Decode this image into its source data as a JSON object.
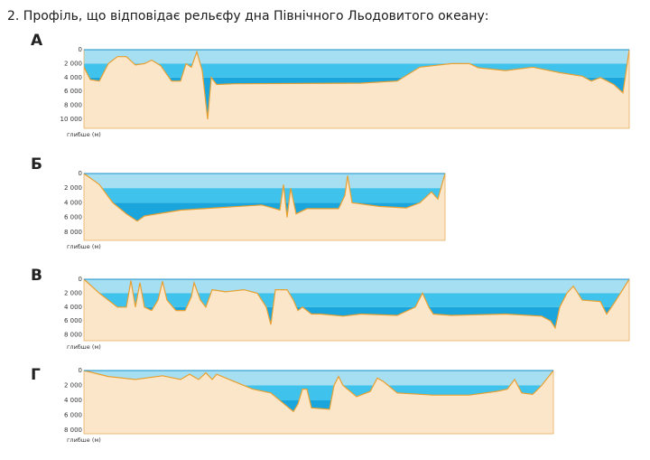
{
  "question": "2.  Профіль, що відповідає рельєфу дна Північного Льодовитого океану:",
  "panels": [
    {
      "label": "А",
      "ticks": [
        "0",
        "2 000",
        "4 000",
        "6 000",
        "8 000",
        "10 000"
      ],
      "axis_label": "глибше (м)"
    },
    {
      "label": "Б",
      "ticks": [
        "0",
        "2 000",
        "4 000",
        "6 000",
        "8 000"
      ],
      "axis_label": "глибше (м)"
    },
    {
      "label": "В",
      "ticks": [
        "0",
        "2 000",
        "4 000",
        "6 000",
        "8 000"
      ],
      "axis_label": "глибше (м)"
    },
    {
      "label": "Г",
      "ticks": [
        "0",
        "2 000",
        "4 000",
        "6 000",
        "8 000"
      ],
      "axis_label": "глибше (м)"
    }
  ]
}
